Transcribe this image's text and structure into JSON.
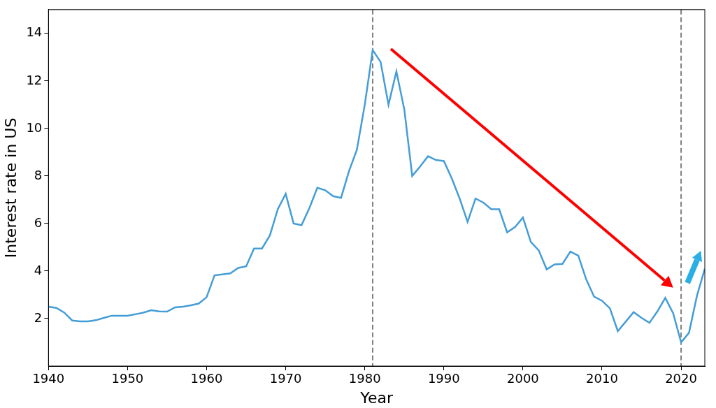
{
  "chart_data": {
    "type": "line",
    "x_label": "Year",
    "y_label": "Interest rate in US",
    "x": [
      1940,
      1941,
      1942,
      1943,
      1944,
      1945,
      1946,
      1947,
      1948,
      1949,
      1950,
      1951,
      1952,
      1953,
      1954,
      1955,
      1956,
      1957,
      1958,
      1959,
      1960,
      1961,
      1962,
      1963,
      1964,
      1965,
      1966,
      1967,
      1968,
      1969,
      1970,
      1971,
      1972,
      1973,
      1974,
      1975,
      1976,
      1977,
      1978,
      1979,
      1980,
      1981,
      1982,
      1983,
      1984,
      1985,
      1986,
      1987,
      1988,
      1989,
      1990,
      1991,
      1992,
      1993,
      1994,
      1995,
      1996,
      1997,
      1998,
      1999,
      2000,
      2001,
      2002,
      2003,
      2004,
      2005,
      2006,
      2007,
      2008,
      2009,
      2010,
      2011,
      2012,
      2013,
      2014,
      2015,
      2016,
      2017,
      2018,
      2019,
      2020,
      2021,
      2022,
      2023
    ],
    "values": [
      2.5,
      2.45,
      2.25,
      1.92,
      1.88,
      1.88,
      1.93,
      2.03,
      2.12,
      2.12,
      2.12,
      2.18,
      2.25,
      2.35,
      2.3,
      2.29,
      2.47,
      2.5,
      2.56,
      2.63,
      2.9,
      3.82,
      3.86,
      3.9,
      4.13,
      4.2,
      4.95,
      4.95,
      5.5,
      6.6,
      7.25,
      6.0,
      5.93,
      6.65,
      7.5,
      7.4,
      7.15,
      7.08,
      8.2,
      9.1,
      11.0,
      13.3,
      12.8,
      11.0,
      12.4,
      10.8,
      8.0,
      8.4,
      8.83,
      8.67,
      8.63,
      7.9,
      7.05,
      6.07,
      7.05,
      6.88,
      6.6,
      6.6,
      5.63,
      5.85,
      6.25,
      5.22,
      4.87,
      4.07,
      4.28,
      4.3,
      4.82,
      4.65,
      3.65,
      2.92,
      2.75,
      2.43,
      1.47,
      1.87,
      2.27,
      2.03,
      1.82,
      2.3,
      2.87,
      2.22,
      1.0,
      1.4,
      2.95,
      4.1
    ],
    "color": "#449dd6",
    "xlim": [
      1940,
      2023
    ],
    "xticks": [
      1940,
      1950,
      1960,
      1970,
      1980,
      1990,
      2000,
      2010,
      2020
    ],
    "ylim": [
      0,
      15
    ],
    "yticks": [
      2,
      4,
      6,
      8,
      10,
      12,
      14
    ],
    "grid": false,
    "vlines": [
      1981,
      2020
    ],
    "arrows": [
      {
        "from": [
          1983.3,
          13.35
        ],
        "to": [
          2019,
          3.3
        ],
        "color": "#ff0000"
      },
      {
        "from": [
          2020.8,
          3.5
        ],
        "to": [
          2022.5,
          4.85
        ],
        "color": "#29aee6"
      }
    ]
  }
}
